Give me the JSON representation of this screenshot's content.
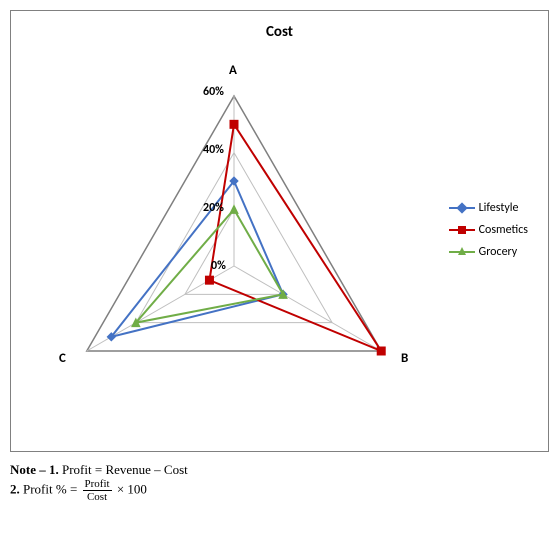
{
  "chart": {
    "type": "radar",
    "title": "Cost",
    "title_fontsize": 15,
    "title_fontweight": "bold",
    "axes": [
      "A",
      "B",
      "C"
    ],
    "axis_label_fontsize": 13,
    "axis_label_fontweight": "bold",
    "ticks": [
      0,
      20,
      40,
      60
    ],
    "tick_labels": [
      "0%",
      "20%",
      "40%",
      "60%"
    ],
    "tick_fontsize": 12,
    "max": 60,
    "grid_color": "#bfbfbf",
    "grid_stroke": 1,
    "outer_grid_color": "#7f7f7f",
    "outer_grid_stroke": 1.5,
    "background_color": "#ffffff",
    "border_color": "#808080",
    "series": [
      {
        "name": "Lifestyle",
        "color": "#4472c4",
        "marker": "diamond",
        "line_width": 2,
        "values": {
          "A": 30,
          "B": 20,
          "C": 50
        }
      },
      {
        "name": "Cosmetics",
        "color": "#c00000",
        "marker": "square",
        "line_width": 2,
        "values": {
          "A": 50,
          "B": 60,
          "C": 10
        }
      },
      {
        "name": "Grocery",
        "color": "#70ad47",
        "marker": "triangle",
        "line_width": 2,
        "values": {
          "A": 20,
          "B": 20,
          "C": 40
        }
      }
    ],
    "legend": {
      "position": "right",
      "fontsize": 12
    }
  },
  "notes": {
    "line1_label": "Note – 1.",
    "line1_text": "Profit = Revenue – Cost",
    "line2_label": "2.",
    "line2_prefix": "Profit % =",
    "line2_frac_num": "Profit",
    "line2_frac_den": "Cost",
    "line2_suffix": "× 100"
  }
}
